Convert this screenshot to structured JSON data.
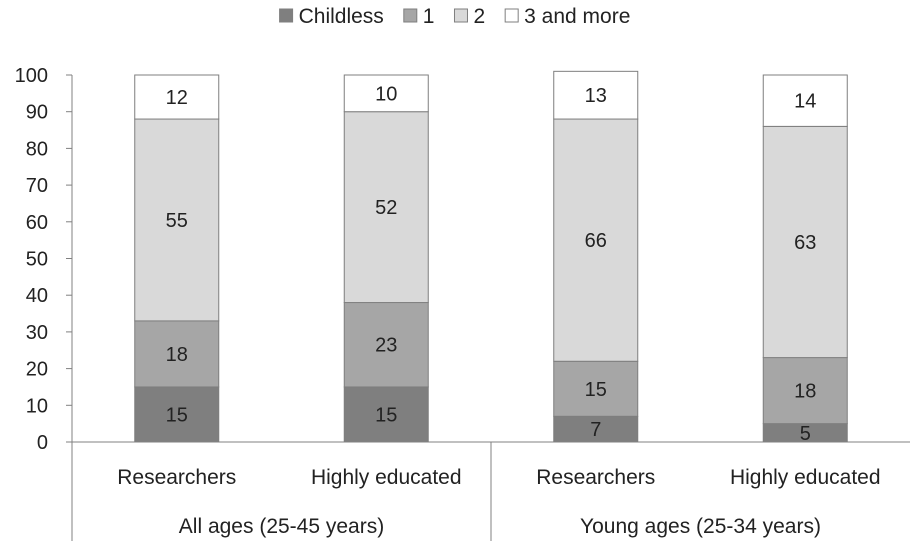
{
  "chart_data": {
    "type": "bar",
    "stacked": true,
    "categories": [
      "Researchers",
      "Highly educated",
      "Researchers",
      "Highly educated"
    ],
    "groups": [
      {
        "label": "All ages (25-45 years)",
        "categories": [
          0,
          1
        ]
      },
      {
        "label": "Young ages (25-34 years)",
        "categories": [
          2,
          3
        ]
      }
    ],
    "series": [
      {
        "name": "Childless",
        "values": [
          15,
          15,
          7,
          5
        ],
        "color": "#7f7f7f"
      },
      {
        "name": "1",
        "values": [
          18,
          23,
          15,
          18
        ],
        "color": "#a6a6a6"
      },
      {
        "name": "2",
        "values": [
          55,
          52,
          66,
          63
        ],
        "color": "#d9d9d9"
      },
      {
        "name": "3 and more",
        "values": [
          12,
          10,
          13,
          14
        ],
        "color": "#ffffff"
      }
    ],
    "ylim": [
      0,
      100
    ],
    "yticks": [
      "0",
      "10",
      "20",
      "30",
      "40",
      "50",
      "60",
      "70",
      "80",
      "90",
      "100"
    ],
    "legend_position": "top",
    "grid": false,
    "bar_outline": "#7f7f7f"
  }
}
